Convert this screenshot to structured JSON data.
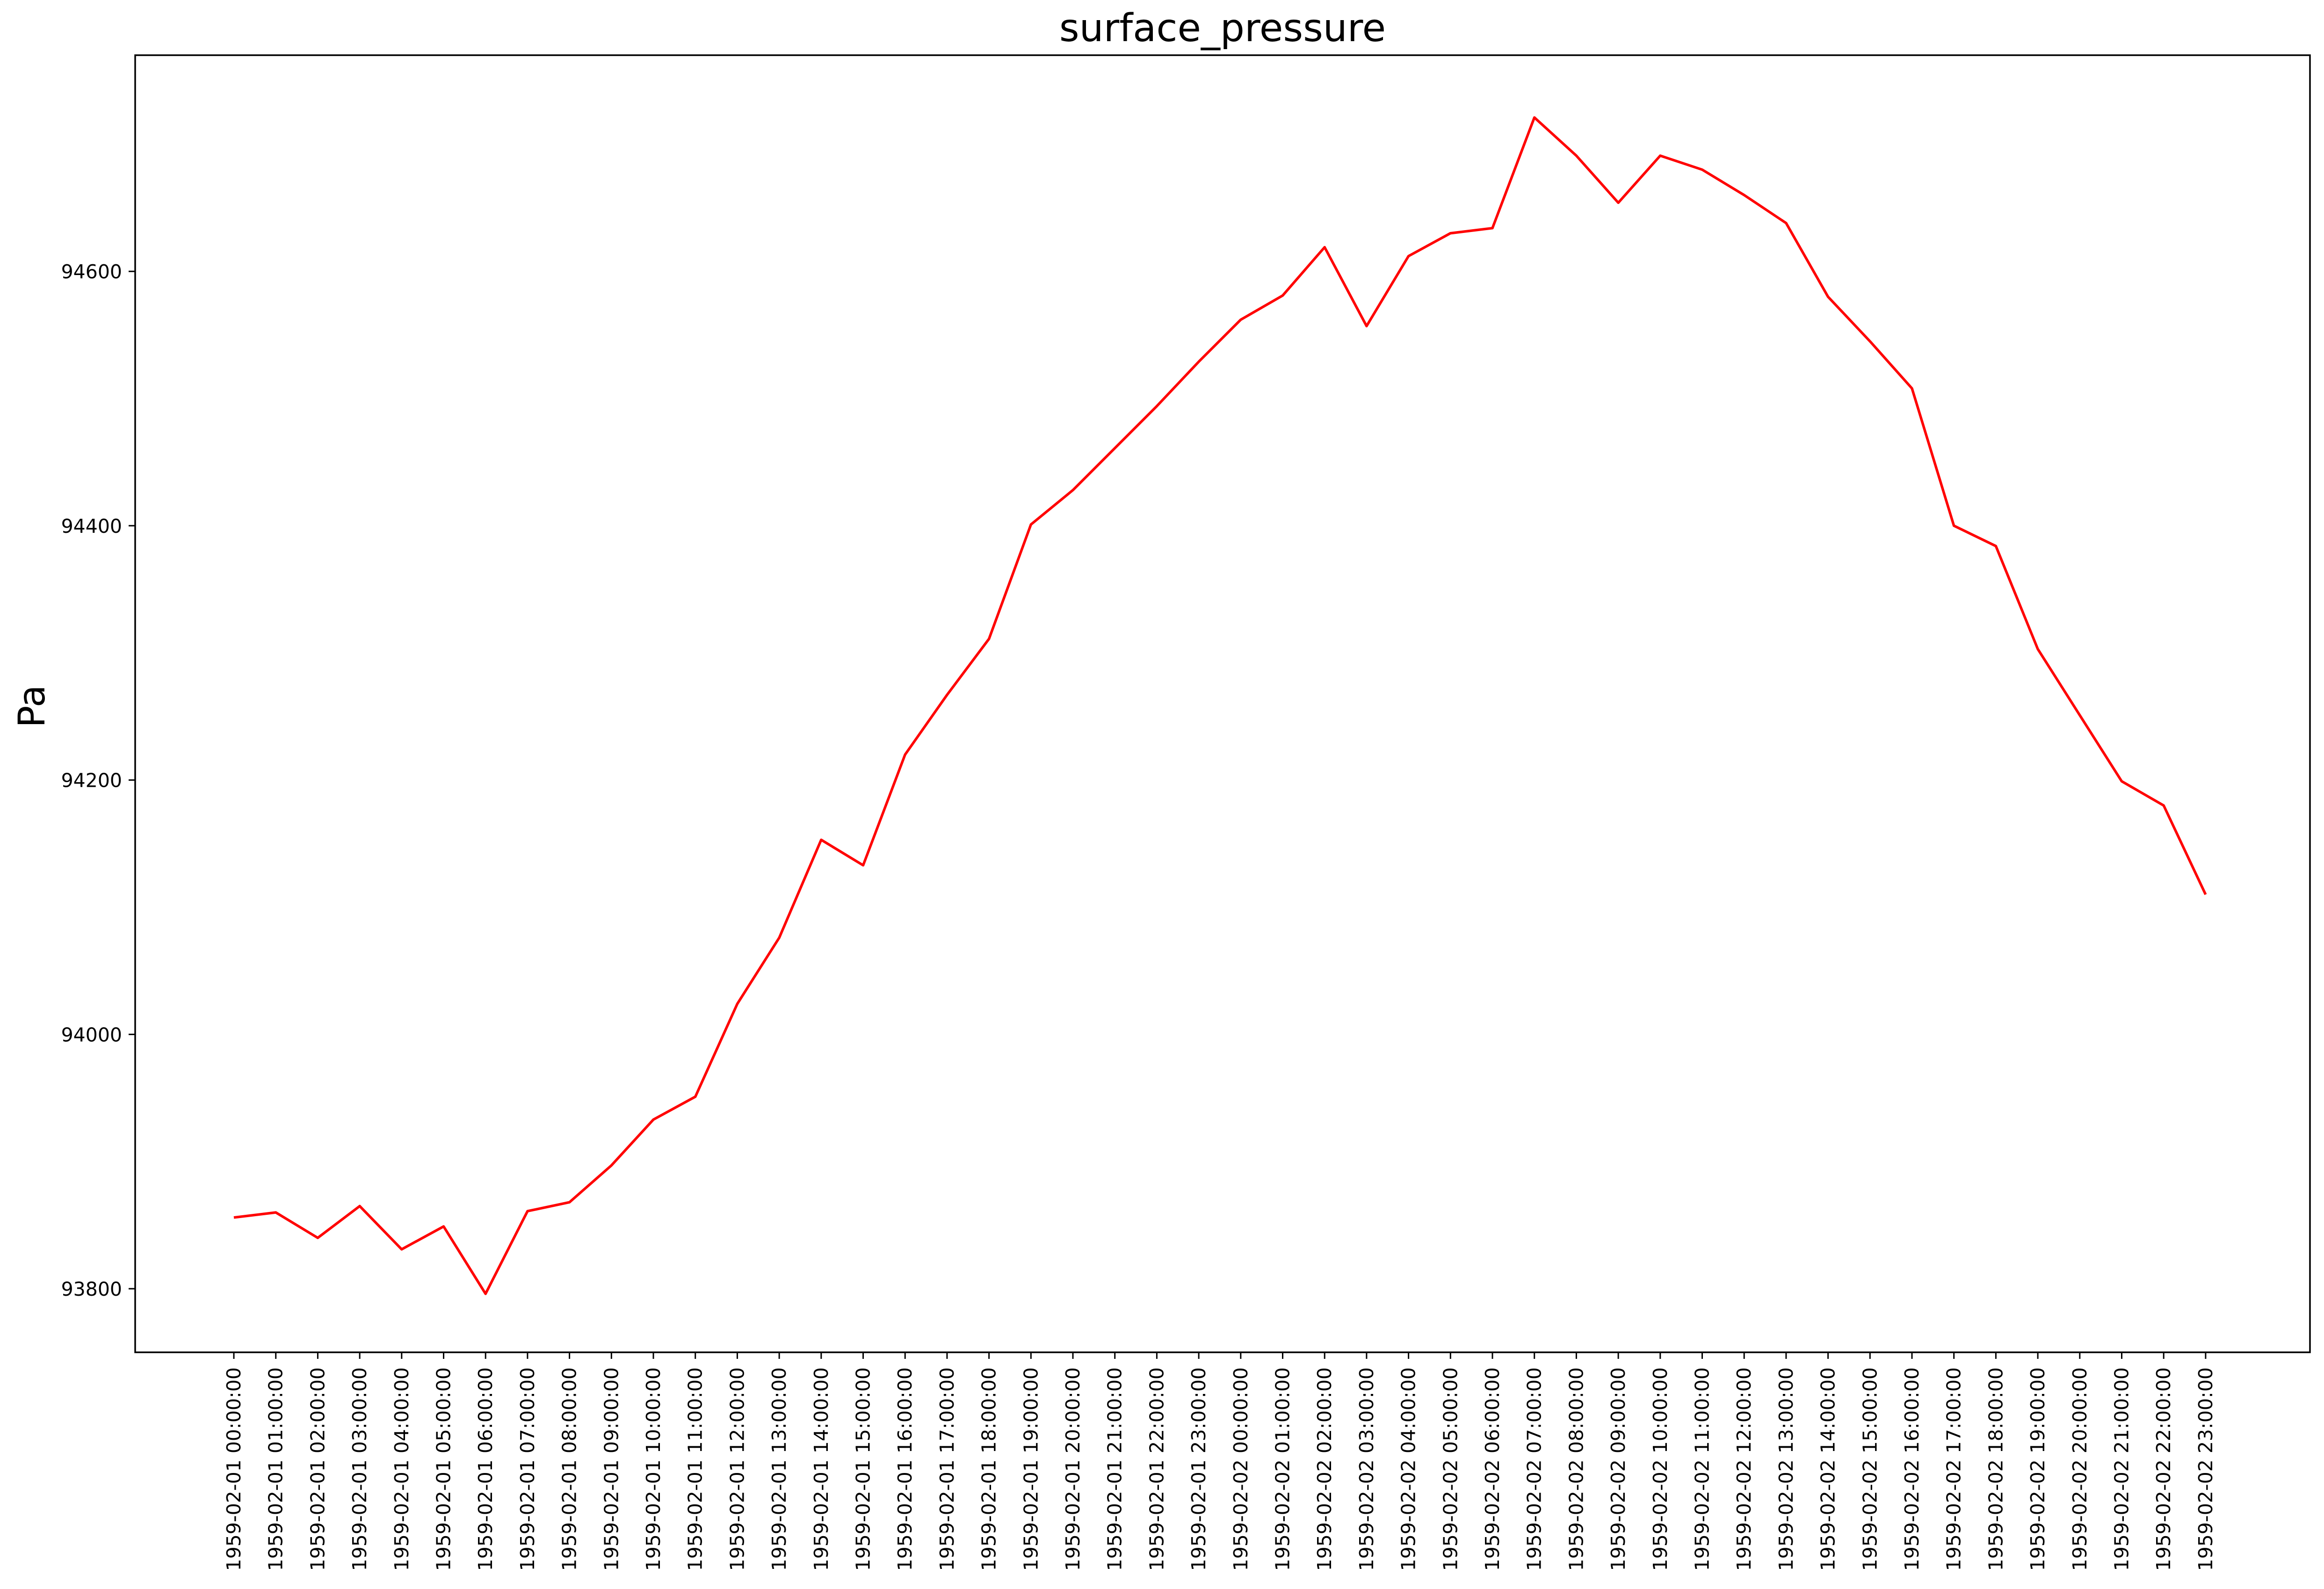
{
  "chart_data": {
    "type": "line",
    "title": "surface_pressure",
    "xlabel": "",
    "ylabel": "Pa",
    "ylim": [
      93750,
      94770
    ],
    "y_ticks": [
      93800,
      94000,
      94200,
      94400,
      94600
    ],
    "grid": false,
    "legend": "none",
    "line_color": "#ff0000",
    "categories": [
      "1959-02-01 00:00:00",
      "1959-02-01 01:00:00",
      "1959-02-01 02:00:00",
      "1959-02-01 03:00:00",
      "1959-02-01 04:00:00",
      "1959-02-01 05:00:00",
      "1959-02-01 06:00:00",
      "1959-02-01 07:00:00",
      "1959-02-01 08:00:00",
      "1959-02-01 09:00:00",
      "1959-02-01 10:00:00",
      "1959-02-01 11:00:00",
      "1959-02-01 12:00:00",
      "1959-02-01 13:00:00",
      "1959-02-01 14:00:00",
      "1959-02-01 15:00:00",
      "1959-02-01 16:00:00",
      "1959-02-01 17:00:00",
      "1959-02-01 18:00:00",
      "1959-02-01 19:00:00",
      "1959-02-01 20:00:00",
      "1959-02-01 21:00:00",
      "1959-02-01 22:00:00",
      "1959-02-01 23:00:00",
      "1959-02-02 00:00:00",
      "1959-02-02 01:00:00",
      "1959-02-02 02:00:00",
      "1959-02-02 03:00:00",
      "1959-02-02 04:00:00",
      "1959-02-02 05:00:00",
      "1959-02-02 06:00:00",
      "1959-02-02 07:00:00",
      "1959-02-02 08:00:00",
      "1959-02-02 09:00:00",
      "1959-02-02 10:00:00",
      "1959-02-02 11:00:00",
      "1959-02-02 12:00:00",
      "1959-02-02 13:00:00",
      "1959-02-02 14:00:00",
      "1959-02-02 15:00:00",
      "1959-02-02 16:00:00",
      "1959-02-02 17:00:00",
      "1959-02-02 18:00:00",
      "1959-02-02 19:00:00",
      "1959-02-02 20:00:00",
      "1959-02-02 21:00:00",
      "1959-02-02 22:00:00",
      "1959-02-02 23:00:00"
    ],
    "series": [
      {
        "values": [
          93856,
          93860,
          93840,
          93865,
          93831,
          93849,
          93796,
          93861,
          93868,
          93897,
          93933,
          93951,
          94024,
          94076,
          94153,
          94133,
          94220,
          94267,
          94311,
          94401,
          94428,
          94461,
          94494,
          94529,
          94562,
          94581,
          94619,
          94557,
          94612,
          94630,
          94634,
          94721,
          94691,
          94654,
          94691,
          94680,
          94660,
          94638,
          94580,
          94545,
          94508,
          94400,
          94384,
          94303,
          94251,
          94199,
          94180,
          94110
        ]
      }
    ]
  }
}
